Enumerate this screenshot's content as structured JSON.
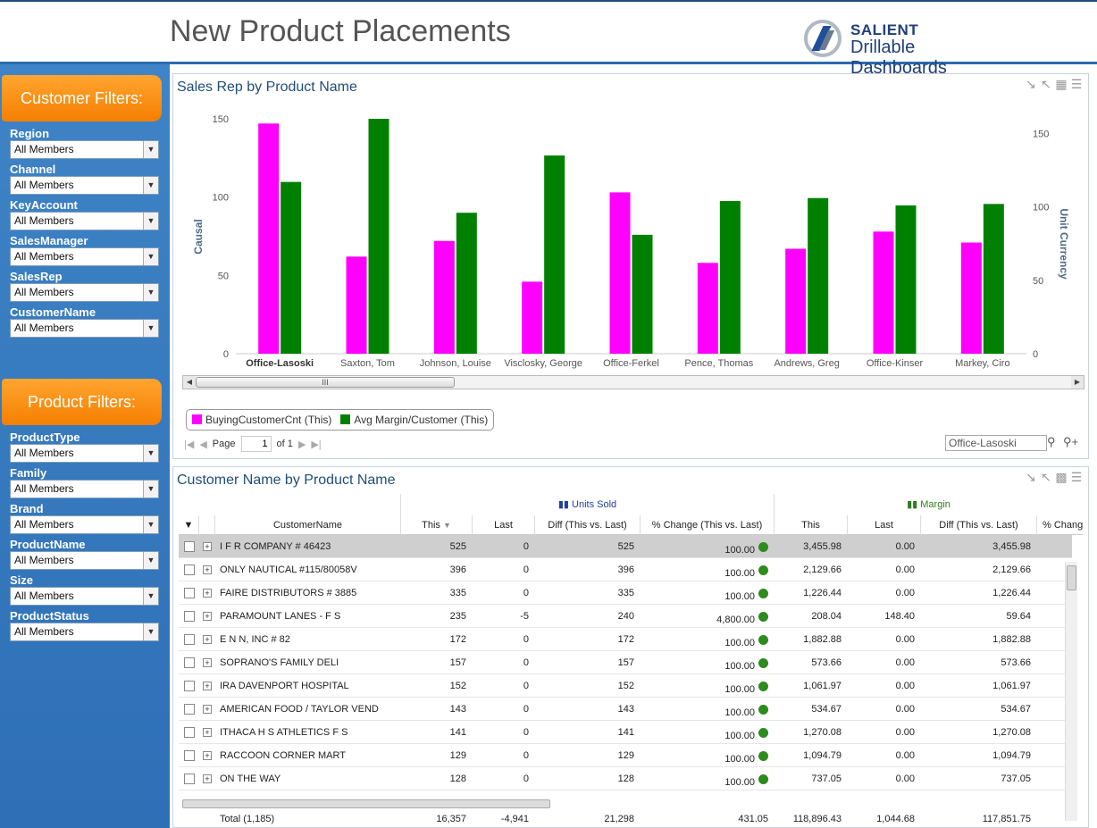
{
  "header": {
    "title": "New Product Placements",
    "logo_brand": "SALIENT",
    "logo_product": "Drillable Dashboards"
  },
  "customer_filters": {
    "title": "Customer Filters:",
    "items": [
      {
        "label": "Region",
        "value": "All Members"
      },
      {
        "label": "Channel",
        "value": "All Members"
      },
      {
        "label": "KeyAccount",
        "value": "All Members"
      },
      {
        "label": "SalesManager",
        "value": "All Members"
      },
      {
        "label": "SalesRep",
        "value": "All Members"
      },
      {
        "label": "CustomerName",
        "value": "All Members"
      }
    ]
  },
  "product_filters": {
    "title": "Product Filters:",
    "items": [
      {
        "label": "ProductType",
        "value": "All Members"
      },
      {
        "label": "Family",
        "value": "All Members"
      },
      {
        "label": "Brand",
        "value": "All Members"
      },
      {
        "label": "ProductName",
        "value": "All Members"
      },
      {
        "label": "Size",
        "value": "All Members"
      },
      {
        "label": "ProductStatus",
        "value": "All Members"
      }
    ]
  },
  "chart_panel": {
    "title": "Sales Rep by Product Name",
    "pager": {
      "label": "Page",
      "value": "1",
      "of": "of 1"
    },
    "search_value": "Office-Lasoski",
    "scroll_label": "III"
  },
  "chart_data": {
    "type": "bar",
    "categories": [
      "Office-Lasoski",
      "Saxton, Tom",
      "Johnson, Louise",
      "Visclosky, George",
      "Office-Ferkel",
      "Pence, Thomas",
      "Andrews, Greg",
      "Office-Kinser",
      "Markey, Ciro"
    ],
    "series": [
      {
        "name": "BuyingCustomerCnt (This)",
        "color": "#ff00ff",
        "axis": "left",
        "values": [
          147,
          62,
          72,
          46,
          103,
          58,
          67,
          78,
          71
        ]
      },
      {
        "name": "Avg Margin/Customer (This)",
        "color": "#008000",
        "axis": "right",
        "values": [
          117,
          160,
          96,
          135,
          81,
          104,
          106,
          101,
          102
        ]
      }
    ],
    "ylabel": "Causal",
    "y2label": "Unit Currency",
    "ylim": [
      0,
      150
    ],
    "y2lim": [
      0,
      160
    ],
    "yticks": [
      "150",
      "100",
      "50",
      "0"
    ],
    "y2ticks": [
      "150",
      "100",
      "50",
      "0"
    ],
    "highlighted_category": "Office-Lasoski",
    "legend_position": "bottom-left"
  },
  "table_panel": {
    "title": "Customer Name by Product Name",
    "groups": {
      "units_sold": "Units Sold",
      "margin": "Margin"
    },
    "columns": [
      "CustomerName",
      "This",
      "Last",
      "Diff (This vs. Last)",
      "% Change (This vs. Last)",
      "This",
      "Last",
      "Diff (This vs. Last)",
      "% Change"
    ],
    "rows": [
      {
        "name": "I F R COMPANY # 46423",
        "u_this": "525",
        "u_last": "0",
        "u_diff": "525",
        "u_pct": "100.00",
        "m_this": "3,455.98",
        "m_last": "0.00",
        "m_diff": "3,455.98"
      },
      {
        "name": "ONLY NAUTICAL #115/80058V",
        "u_this": "396",
        "u_last": "0",
        "u_diff": "396",
        "u_pct": "100.00",
        "m_this": "2,129.66",
        "m_last": "0.00",
        "m_diff": "2,129.66"
      },
      {
        "name": "FAIRE DISTRIBUTORS # 3885",
        "u_this": "335",
        "u_last": "0",
        "u_diff": "335",
        "u_pct": "100.00",
        "m_this": "1,226.44",
        "m_last": "0.00",
        "m_diff": "1,226.44"
      },
      {
        "name": "PARAMOUNT LANES - F S",
        "u_this": "235",
        "u_last": "-5",
        "u_diff": "240",
        "u_pct": "4,800.00",
        "m_this": "208.04",
        "m_last": "148.40",
        "m_diff": "59.64"
      },
      {
        "name": "E N N, INC # 82",
        "u_this": "172",
        "u_last": "0",
        "u_diff": "172",
        "u_pct": "100.00",
        "m_this": "1,882.88",
        "m_last": "0.00",
        "m_diff": "1,882.88"
      },
      {
        "name": "SOPRANO'S FAMILY DELI",
        "u_this": "157",
        "u_last": "0",
        "u_diff": "157",
        "u_pct": "100.00",
        "m_this": "573.66",
        "m_last": "0.00",
        "m_diff": "573.66"
      },
      {
        "name": "IRA DAVENPORT HOSPITAL",
        "u_this": "152",
        "u_last": "0",
        "u_diff": "152",
        "u_pct": "100.00",
        "m_this": "1,061.97",
        "m_last": "0.00",
        "m_diff": "1,061.97"
      },
      {
        "name": "AMERICAN FOOD / TAYLOR VEND",
        "u_this": "143",
        "u_last": "0",
        "u_diff": "143",
        "u_pct": "100.00",
        "m_this": "534.67",
        "m_last": "0.00",
        "m_diff": "534.67"
      },
      {
        "name": "ITHACA H S ATHLETICS F S",
        "u_this": "141",
        "u_last": "0",
        "u_diff": "141",
        "u_pct": "100.00",
        "m_this": "1,270.08",
        "m_last": "0.00",
        "m_diff": "1,270.08"
      },
      {
        "name": "RACCOON CORNER MART",
        "u_this": "129",
        "u_last": "0",
        "u_diff": "129",
        "u_pct": "100.00",
        "m_this": "1,094.79",
        "m_last": "0.00",
        "m_diff": "1,094.79"
      },
      {
        "name": "ON THE WAY",
        "u_this": "128",
        "u_last": "0",
        "u_diff": "128",
        "u_pct": "100.00",
        "m_this": "737.05",
        "m_last": "0.00",
        "m_diff": "737.05"
      }
    ],
    "total": {
      "name": "Total (1,185)",
      "u_this": "16,357",
      "u_last": "-4,941",
      "u_diff": "21,298",
      "u_pct": "431.05",
      "m_this": "118,896.43",
      "m_last": "1,044.68",
      "m_diff": "117,851.75"
    }
  },
  "icons": {
    "dropdown": "chevron-down-icon",
    "minimize": "minimize-icon",
    "maximize": "maximize-icon",
    "grid": "grid-view-icon",
    "chart": "chart-view-icon",
    "menu": "menu-icon",
    "search": "search-icon",
    "add_search": "add-search-icon",
    "status": "green-status-dot-icon"
  },
  "colors": {
    "accent_blue": "#2e6fb5",
    "filter_orange": "#f57f00",
    "status_green": "#2e8b1e"
  }
}
